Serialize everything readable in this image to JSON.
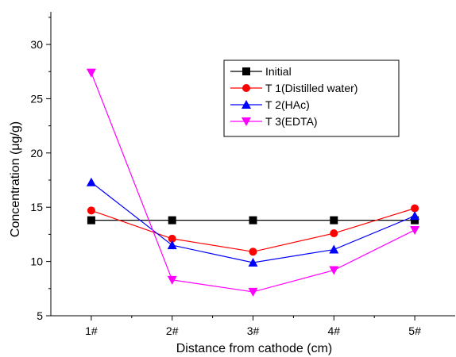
{
  "chart_data": {
    "type": "line",
    "title": "",
    "xlabel": "Distance from cathode (cm)",
    "ylabel": "Concentration (μg/g)",
    "categories": [
      "1#",
      "2#",
      "3#",
      "4#",
      "5#"
    ],
    "ylim": [
      5,
      33
    ],
    "yticks": [
      5,
      10,
      15,
      20,
      25,
      30
    ],
    "grid": false,
    "legend_position": "top-right",
    "series": [
      {
        "name": "Initial",
        "color": "#000000",
        "marker": "square",
        "values": [
          13.8,
          13.8,
          13.8,
          13.8,
          13.8
        ]
      },
      {
        "name": "T 1(Distilled water)",
        "color": "#ff0000",
        "marker": "circle",
        "values": [
          14.7,
          12.1,
          10.9,
          12.6,
          14.9
        ]
      },
      {
        "name": "T 2(HAc)",
        "color": "#0000ff",
        "marker": "triangle-up",
        "values": [
          17.3,
          11.5,
          9.9,
          11.1,
          14.2
        ]
      },
      {
        "name": "T 3(EDTA)",
        "color": "#ff00ff",
        "marker": "triangle-down",
        "values": [
          27.4,
          8.3,
          7.2,
          9.2,
          12.9
        ]
      }
    ]
  }
}
